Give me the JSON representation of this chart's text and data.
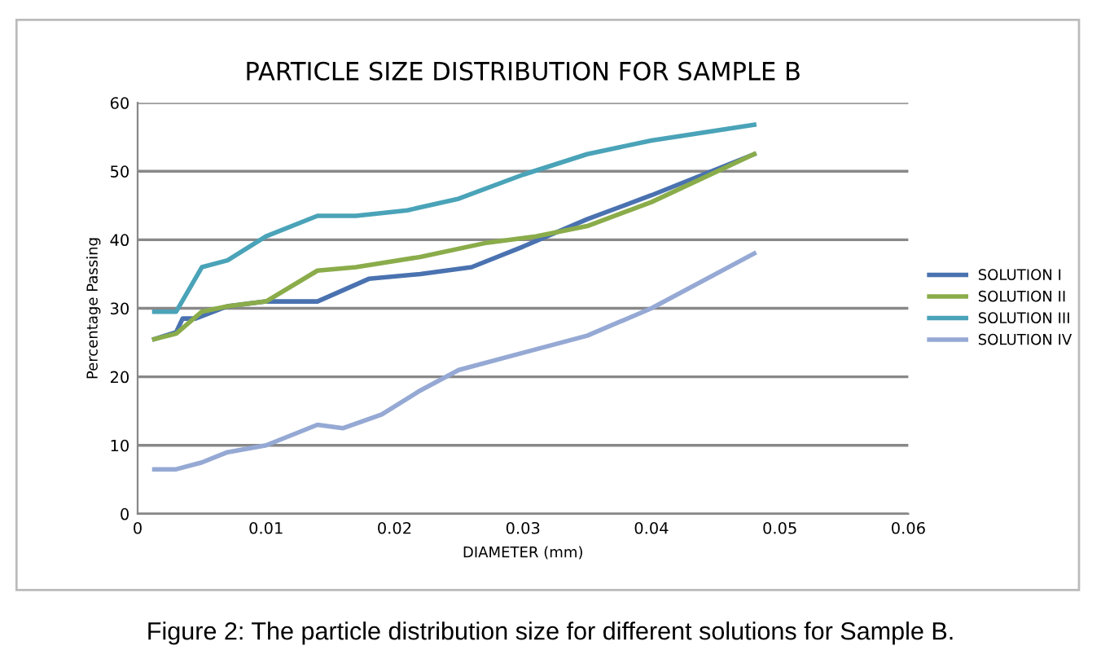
{
  "chart_data": {
    "type": "line",
    "title": "PARTICLE SIZE DISTRIBUTION FOR SAMPLE B",
    "xlabel": "DIAMETER (mm)",
    "ylabel": "Percentage Passing",
    "series": [
      {
        "name": "SOLUTION I",
        "color": "#4a72b0",
        "x": [
          0.0013,
          0.003,
          0.0035,
          0.0045,
          0.007,
          0.01,
          0.014,
          0.018,
          0.022,
          0.026,
          0.03,
          0.035,
          0.04,
          0.048
        ],
        "values": [
          25.5,
          26.5,
          28.5,
          28.5,
          30.3,
          31,
          31,
          34.3,
          35,
          36,
          39,
          43,
          46.5,
          52.5
        ]
      },
      {
        "name": "SOLUTION II",
        "color": "#8aac4a",
        "x": [
          0.0013,
          0.003,
          0.005,
          0.007,
          0.01,
          0.014,
          0.017,
          0.022,
          0.027,
          0.031,
          0.035,
          0.04,
          0.048
        ],
        "values": [
          25.5,
          26.3,
          29.5,
          30.3,
          31,
          35.5,
          36,
          37.5,
          39.5,
          40.5,
          42,
          45.5,
          52.5
        ]
      },
      {
        "name": "SOLUTION III",
        "color": "#4aa3b8",
        "x": [
          0.0013,
          0.003,
          0.005,
          0.007,
          0.01,
          0.014,
          0.017,
          0.021,
          0.025,
          0.03,
          0.035,
          0.04,
          0.048
        ],
        "values": [
          29.5,
          29.5,
          36,
          37,
          40.5,
          43.5,
          43.5,
          44.3,
          46,
          49.5,
          52.5,
          54.5,
          56.8
        ]
      },
      {
        "name": "SOLUTION IV",
        "color": "#95a9d4",
        "x": [
          0.0013,
          0.003,
          0.005,
          0.007,
          0.01,
          0.014,
          0.016,
          0.019,
          0.022,
          0.025,
          0.03,
          0.035,
          0.04,
          0.048
        ],
        "values": [
          6.5,
          6.5,
          7.5,
          9,
          10,
          13,
          12.5,
          14.5,
          18,
          21,
          23.5,
          26,
          30,
          38
        ]
      }
    ],
    "xlim": [
      0,
      0.06
    ],
    "xticks": [
      0,
      0.01,
      0.02,
      0.03,
      0.04,
      0.05,
      0.06
    ],
    "ylim": [
      0,
      60
    ],
    "yticks": [
      0,
      10,
      20,
      30,
      40,
      50,
      60
    ],
    "grid": "y",
    "legend": "right",
    "marker": "none",
    "line_style": "solid",
    "annotations": [
      "Figure 2: The particle distribution size for different solutions for Sample B."
    ]
  }
}
